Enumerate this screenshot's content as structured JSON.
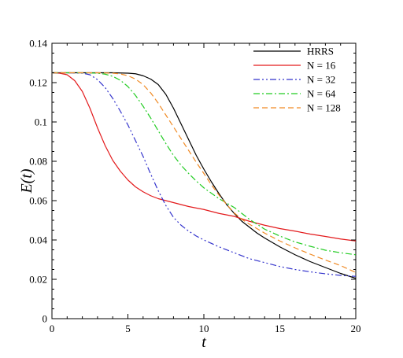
{
  "chart_data": {
    "type": "line",
    "xlabel": "t",
    "ylabel": "E(t)",
    "xlim": [
      0,
      20
    ],
    "ylim": [
      0,
      0.14
    ],
    "xticks": [
      0,
      5,
      10,
      15,
      20
    ],
    "yticks": [
      0,
      0.02,
      0.04,
      0.06,
      0.08,
      0.1,
      0.12,
      0.14
    ],
    "ytick_labels": [
      "0",
      "0.02",
      "0.04",
      "0.06",
      "0.08",
      "0.1",
      "0.12",
      "0.14"
    ],
    "xtick_labels": [
      "0",
      "5",
      "10",
      "15",
      "20"
    ],
    "grid": false,
    "legend_position": "top-right",
    "series": [
      {
        "name": "HRRS",
        "color": "#000000",
        "dash": "solid",
        "x": [
          0,
          2,
          4,
          5,
          5.5,
          6,
          6.5,
          7,
          7.5,
          8,
          8.5,
          9,
          9.5,
          10,
          10.5,
          11,
          11.5,
          12,
          12.5,
          13,
          13.5,
          14,
          15,
          16,
          17,
          18,
          19,
          20
        ],
        "y": [
          0.125,
          0.125,
          0.125,
          0.1248,
          0.1245,
          0.1235,
          0.1218,
          0.119,
          0.114,
          0.107,
          0.099,
          0.091,
          0.083,
          0.076,
          0.0695,
          0.0635,
          0.058,
          0.0535,
          0.0495,
          0.0465,
          0.0435,
          0.041,
          0.0365,
          0.0325,
          0.029,
          0.026,
          0.023,
          0.0205
        ]
      },
      {
        "name": "N = 16",
        "color": "#e31a1c",
        "dash": "solid",
        "x": [
          0,
          0.5,
          1,
          1.5,
          2,
          2.5,
          3,
          3.5,
          4,
          4.5,
          5,
          5.5,
          6,
          6.5,
          7,
          7.5,
          8,
          9,
          10,
          11,
          12,
          13,
          14,
          15,
          16,
          17,
          18,
          19,
          20
        ],
        "y": [
          0.125,
          0.1248,
          0.124,
          0.121,
          0.1155,
          0.107,
          0.097,
          0.088,
          0.0805,
          0.075,
          0.0705,
          0.067,
          0.0645,
          0.0625,
          0.061,
          0.06,
          0.059,
          0.057,
          0.0555,
          0.0535,
          0.052,
          0.0495,
          0.0475,
          0.0458,
          0.0445,
          0.043,
          0.0418,
          0.0405,
          0.0395
        ]
      },
      {
        "name": "N = 32",
        "color": "#3333cc",
        "dash": "dashdotdot",
        "x": [
          0,
          1,
          2,
          2.5,
          3,
          3.5,
          4,
          4.5,
          5,
          5.5,
          6,
          6.5,
          7,
          7.5,
          8,
          8.5,
          9,
          9.5,
          10,
          11,
          12,
          13,
          14,
          15,
          16,
          17,
          18,
          19,
          20
        ],
        "y": [
          0.125,
          0.125,
          0.1248,
          0.124,
          0.1215,
          0.1175,
          0.112,
          0.1055,
          0.0985,
          0.0905,
          0.0825,
          0.0735,
          0.065,
          0.0575,
          0.0515,
          0.0475,
          0.0445,
          0.042,
          0.04,
          0.0365,
          0.0335,
          0.0305,
          0.0285,
          0.0265,
          0.025,
          0.0238,
          0.0228,
          0.022,
          0.0215
        ]
      },
      {
        "name": "N = 64",
        "color": "#22cc22",
        "dash": "dashdot",
        "x": [
          0,
          1,
          2,
          3,
          3.5,
          4,
          4.5,
          5,
          5.5,
          6,
          6.5,
          7,
          7.5,
          8,
          8.5,
          9,
          9.5,
          10,
          11,
          12,
          13,
          14,
          15,
          16,
          17,
          18,
          19,
          20
        ],
        "y": [
          0.125,
          0.125,
          0.125,
          0.1248,
          0.1243,
          0.1232,
          0.1212,
          0.118,
          0.1135,
          0.108,
          0.102,
          0.0955,
          0.089,
          0.083,
          0.078,
          0.0738,
          0.07,
          0.0665,
          0.061,
          0.0565,
          0.0505,
          0.0455,
          0.042,
          0.039,
          0.0368,
          0.0348,
          0.0335,
          0.0325
        ]
      },
      {
        "name": "N = 128",
        "color": "#f08a24",
        "dash": "dashed",
        "x": [
          0,
          2,
          3,
          4,
          4.5,
          5,
          5.5,
          6,
          6.5,
          7,
          7.5,
          8,
          8.5,
          9,
          9.5,
          10,
          10.5,
          11,
          11.5,
          12,
          12.5,
          13,
          14,
          15,
          16,
          17,
          18,
          19,
          20
        ],
        "y": [
          0.125,
          0.125,
          0.125,
          0.1248,
          0.1244,
          0.1235,
          0.1218,
          0.119,
          0.1148,
          0.1095,
          0.1035,
          0.0975,
          0.0915,
          0.0855,
          0.0795,
          0.0738,
          0.068,
          0.0628,
          0.058,
          0.0538,
          0.0505,
          0.048,
          0.0435,
          0.0395,
          0.036,
          0.0328,
          0.0298,
          0.027,
          0.0235
        ]
      }
    ]
  }
}
